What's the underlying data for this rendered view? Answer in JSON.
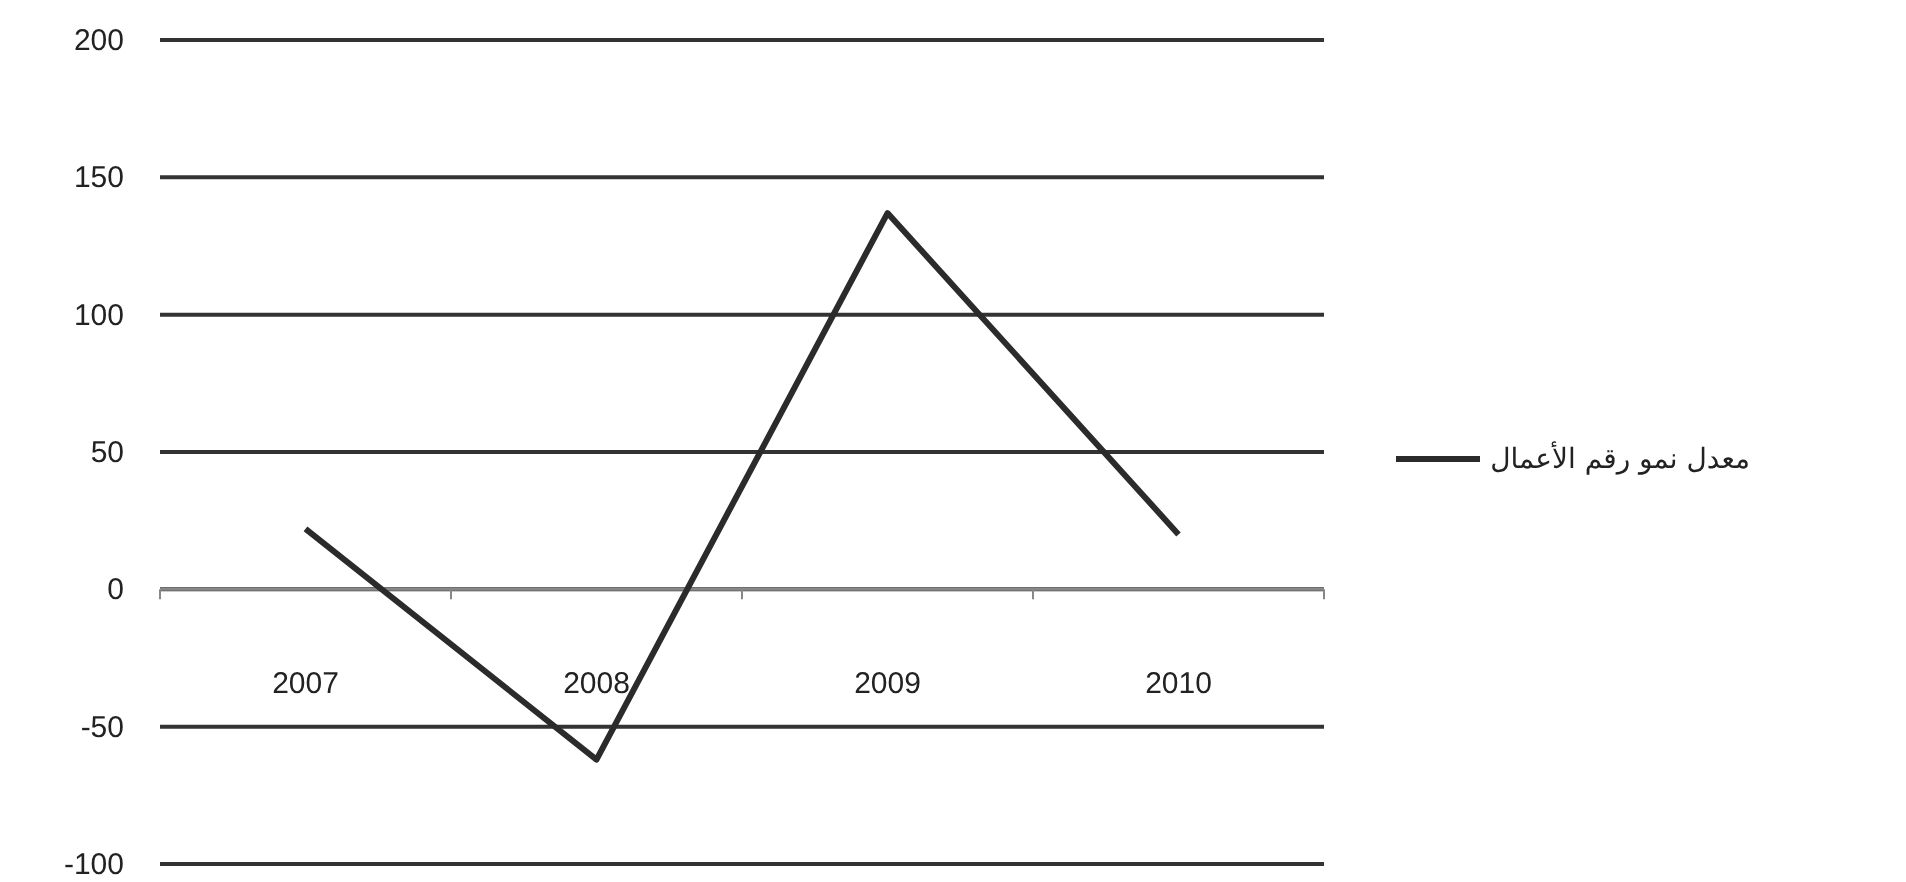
{
  "chart_data": {
    "type": "line",
    "categories": [
      "2007",
      "2008",
      "2009",
      "2010"
    ],
    "series": [
      {
        "name": "معدل نمو رقم الأعمال",
        "color": "#2b2b2b",
        "values": [
          22,
          -62,
          137,
          20
        ]
      }
    ],
    "ylim": [
      -100,
      200
    ],
    "yticks": [
      -100,
      -50,
      0,
      50,
      100,
      150,
      200
    ],
    "grid": "y",
    "legend": "right",
    "marker": "none",
    "line_style": "solid"
  }
}
